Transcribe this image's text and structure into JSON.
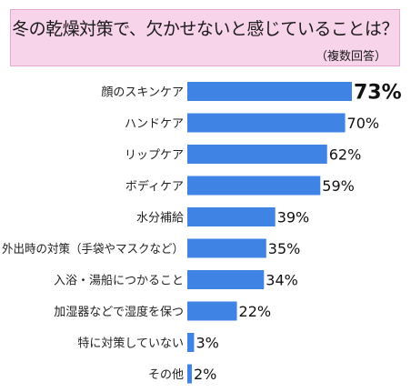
{
  "header": {
    "title": "冬の乾燥対策で、欠かせないと感じていることは？",
    "subtitle": "（複数回答）"
  },
  "chart_data": {
    "type": "bar",
    "orientation": "horizontal",
    "title": "冬の乾燥対策で、欠かせないと感じていることは？",
    "subtitle": "（複数回答）",
    "categories": [
      "顔のスキンケア",
      "ハンドケア",
      "リップケア",
      "ボディケア",
      "水分補給",
      "外出時の対策（手袋やマスクなど）",
      "入浴・湯船につかること",
      "加湿器などで湿度を保つ",
      "特に対策していない",
      "その他"
    ],
    "values": [
      73,
      70,
      62,
      59,
      39,
      35,
      34,
      22,
      3,
      2
    ],
    "value_labels": [
      "73%",
      "70%",
      "62%",
      "59%",
      "39%",
      "35%",
      "34%",
      "22%",
      "3%",
      "2%"
    ],
    "unit": "%",
    "bar_color": "#3f84e5",
    "grid": false,
    "legend": "none"
  }
}
